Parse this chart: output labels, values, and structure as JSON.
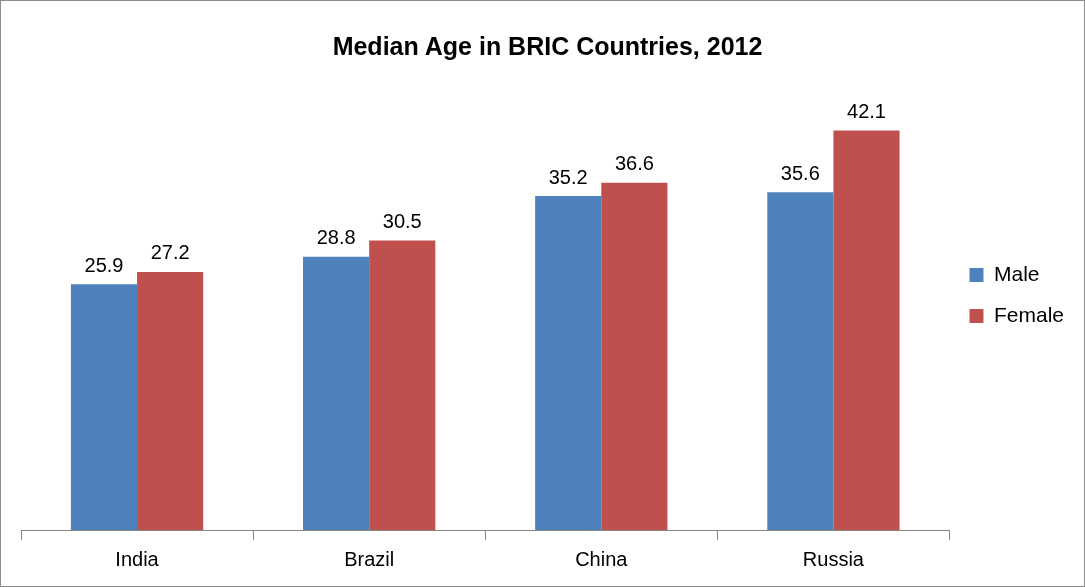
{
  "chart_data": {
    "type": "bar",
    "title": "Median Age in BRIC Countries, 2012",
    "categories": [
      "India",
      "Brazil",
      "China",
      "Russia"
    ],
    "series": [
      {
        "name": "Male",
        "color": "#4f81bd",
        "values": [
          25.9,
          28.8,
          35.2,
          35.6
        ]
      },
      {
        "name": "Female",
        "color": "#c0504d",
        "values": [
          27.2,
          30.5,
          36.6,
          42.1
        ]
      }
    ],
    "data_labels": true,
    "legend": "right",
    "grid": false,
    "tick_labels": "x"
  }
}
